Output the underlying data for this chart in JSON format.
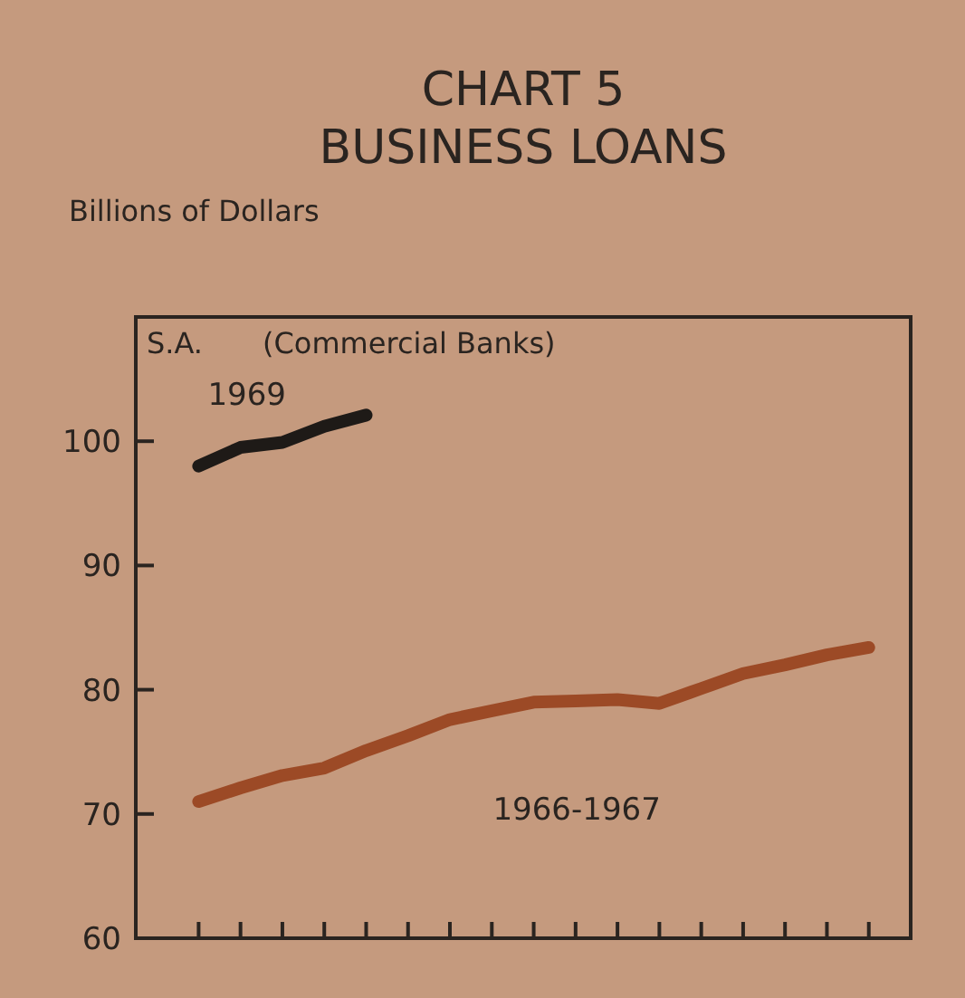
{
  "chart_data": {
    "type": "line",
    "title": "CHART 5",
    "subtitle": "BUSINESS LOANS",
    "ylabel": "Billions of Dollars",
    "annotations": [
      "S.A.",
      "(Commercial Banks)"
    ],
    "categories": [
      null,
      null,
      null,
      null,
      null,
      null,
      null,
      null,
      null,
      null,
      null,
      null,
      null,
      null,
      null,
      null,
      null
    ],
    "ylim": [
      60,
      110
    ],
    "yticks": [
      60,
      70,
      80,
      90,
      100
    ],
    "marker": "none",
    "line_style": "solid",
    "series": [
      {
        "name": "1969",
        "color": "#1e1a17",
        "values": [
          98.0,
          99.5,
          99.9,
          101.2,
          102.1,
          null,
          null,
          null,
          null,
          null,
          null,
          null,
          null,
          null,
          null,
          null,
          null
        ]
      },
      {
        "name": "1966-1967",
        "color": "#9c4a26",
        "values": [
          71.0,
          72.1,
          73.1,
          73.7,
          75.1,
          76.3,
          77.6,
          78.3,
          79.0,
          79.1,
          79.2,
          78.9,
          80.1,
          81.3,
          82.0,
          82.8,
          83.4
        ]
      }
    ]
  }
}
